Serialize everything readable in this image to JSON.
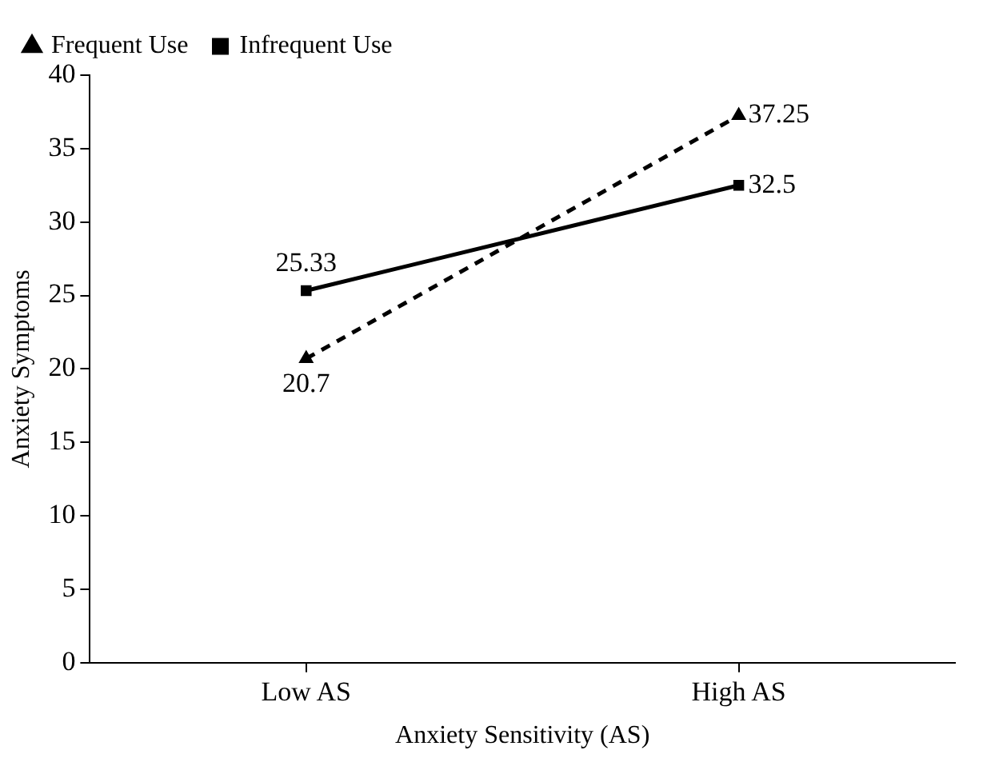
{
  "chart_data": {
    "type": "line",
    "xlabel": "Anxiety Sensitivity (AS)",
    "ylabel": "Anxiety Symptoms",
    "categories": [
      "Low AS",
      "High AS"
    ],
    "series": [
      {
        "name": "Frequent Use",
        "color": "#000000",
        "values": [
          20.7,
          37.25
        ],
        "line_style": "dashed",
        "marker": "triangle"
      },
      {
        "name": "Infrequent Use",
        "color": "#000000",
        "values": [
          25.33,
          32.5
        ],
        "line_style": "solid",
        "marker": "square"
      }
    ],
    "ylim": [
      0,
      40
    ],
    "yticks": [
      0,
      5,
      10,
      15,
      20,
      25,
      30,
      35,
      40
    ],
    "data_labels": true,
    "legend": "top left"
  }
}
